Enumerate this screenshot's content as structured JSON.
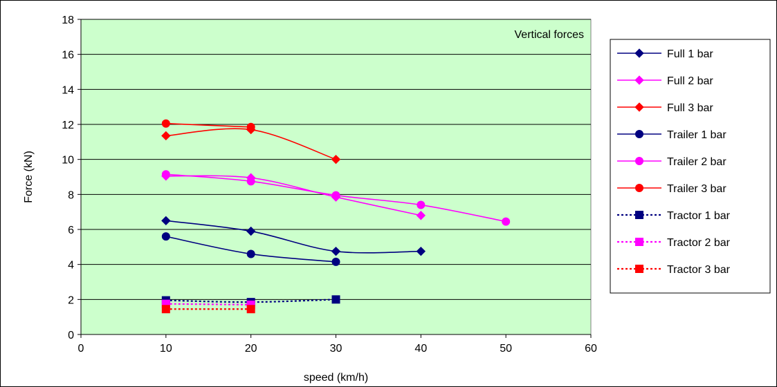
{
  "chart_data": {
    "type": "line",
    "annotation": "Vertical forces",
    "xlabel": "speed (km/h)",
    "ylabel": "Force (kN)",
    "xlim": [
      0,
      60
    ],
    "ylim": [
      0,
      18
    ],
    "xticks": [
      0,
      10,
      20,
      30,
      40,
      50,
      60
    ],
    "yticks": [
      0,
      2,
      4,
      6,
      8,
      10,
      12,
      14,
      16,
      18
    ],
    "grid": "horizontal",
    "plot_background": "#ccffcc",
    "legend_position": "right",
    "series": [
      {
        "name": "Full 1 bar",
        "color": "#000080",
        "marker": "diamond",
        "dash": "solid",
        "points": [
          [
            10,
            6.5
          ],
          [
            20,
            5.9
          ],
          [
            30,
            4.75
          ],
          [
            40,
            4.75
          ]
        ]
      },
      {
        "name": "Full 2 bar",
        "color": "#ff00ff",
        "marker": "diamond",
        "dash": "solid",
        "points": [
          [
            10,
            9.05
          ],
          [
            20,
            8.95
          ],
          [
            30,
            7.85
          ],
          [
            40,
            6.8
          ]
        ]
      },
      {
        "name": "Full 3 bar",
        "color": "#ff0000",
        "marker": "diamond",
        "dash": "solid",
        "points": [
          [
            10,
            11.35
          ],
          [
            20,
            11.7
          ],
          [
            30,
            10.0
          ]
        ]
      },
      {
        "name": "Trailer 1 bar",
        "color": "#000080",
        "marker": "circle",
        "dash": "solid",
        "points": [
          [
            10,
            5.6
          ],
          [
            20,
            4.6
          ],
          [
            30,
            4.15
          ]
        ]
      },
      {
        "name": "Trailer 2 bar",
        "color": "#ff00ff",
        "marker": "circle",
        "dash": "solid",
        "points": [
          [
            10,
            9.15
          ],
          [
            20,
            8.75
          ],
          [
            30,
            7.95
          ],
          [
            40,
            7.4
          ],
          [
            50,
            6.45
          ]
        ]
      },
      {
        "name": "Trailer 3 bar",
        "color": "#ff0000",
        "marker": "circle",
        "dash": "solid",
        "points": [
          [
            10,
            12.05
          ],
          [
            20,
            11.85
          ]
        ]
      },
      {
        "name": "Tractor 1 bar",
        "color": "#000080",
        "marker": "square",
        "dash": "dotted",
        "points": [
          [
            10,
            1.95
          ],
          [
            20,
            1.85
          ],
          [
            30,
            2.0
          ]
        ]
      },
      {
        "name": "Tractor 2 bar",
        "color": "#ff00ff",
        "marker": "square",
        "dash": "dotted",
        "points": [
          [
            10,
            1.75
          ],
          [
            20,
            1.7
          ]
        ]
      },
      {
        "name": "Tractor 3 bar",
        "color": "#ff0000",
        "marker": "square",
        "dash": "dotted",
        "points": [
          [
            10,
            1.45
          ],
          [
            20,
            1.45
          ]
        ]
      }
    ]
  }
}
